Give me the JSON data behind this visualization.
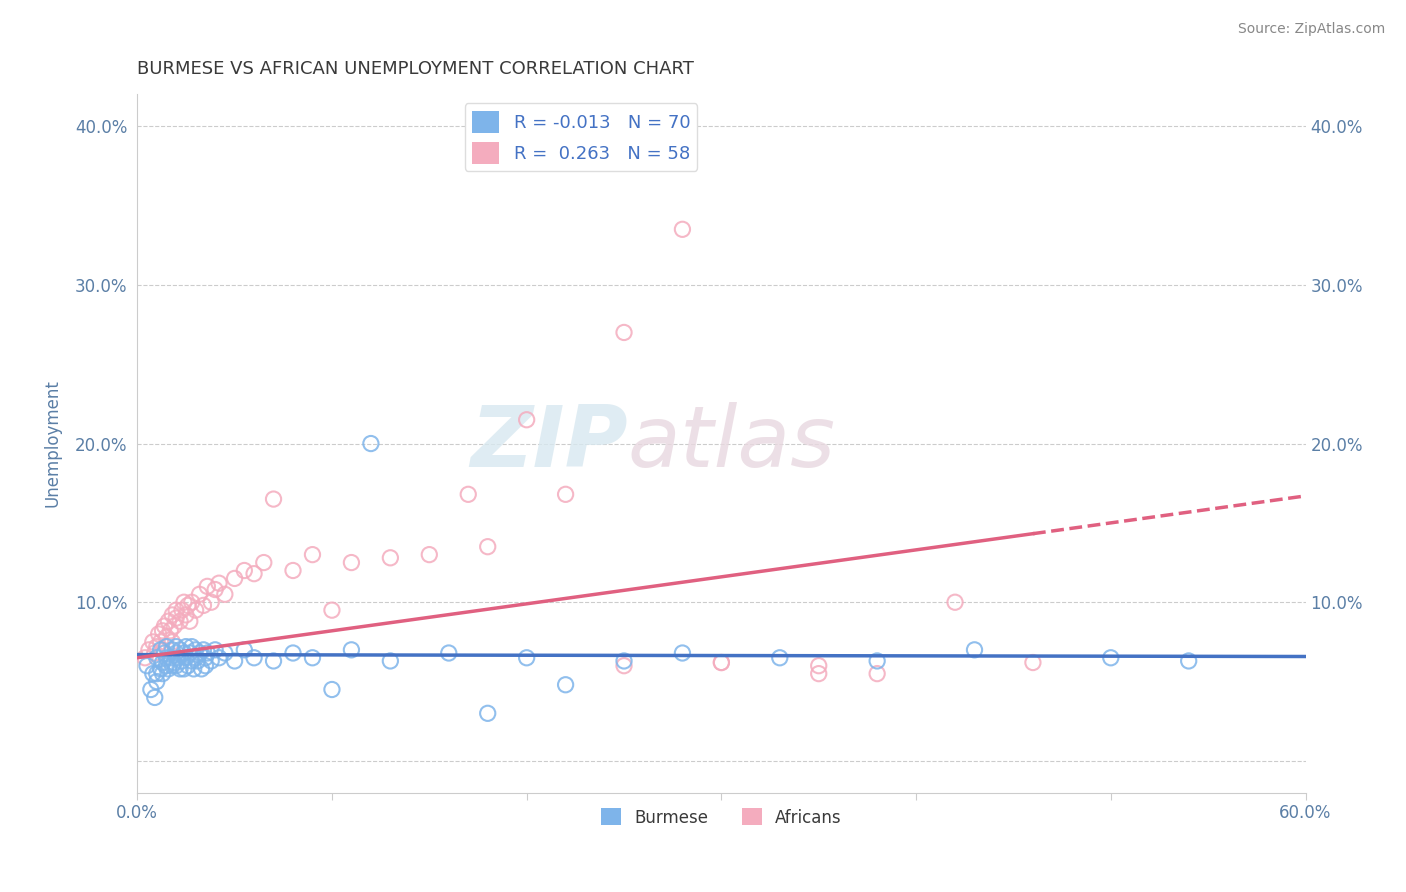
{
  "title": "BURMESE VS AFRICAN UNEMPLOYMENT CORRELATION CHART",
  "source": "Source: ZipAtlas.com",
  "ylabel": "Unemployment",
  "xlim": [
    0.0,
    0.6
  ],
  "ylim": [
    -0.02,
    0.42
  ],
  "yticks": [
    0.0,
    0.1,
    0.2,
    0.3,
    0.4
  ],
  "ytick_labels": [
    "",
    "10.0%",
    "20.0%",
    "30.0%",
    "40.0%"
  ],
  "xticks": [
    0.0,
    0.1,
    0.2,
    0.3,
    0.4,
    0.5,
    0.6
  ],
  "xtick_labels": [
    "0.0%",
    "",
    "",
    "",
    "",
    "",
    "60.0%"
  ],
  "burmese_color": "#7EB4EA",
  "burmese_line_color": "#4472C4",
  "african_color": "#F4ACBE",
  "african_line_color": "#E06080",
  "burmese_R": -0.013,
  "burmese_N": 70,
  "african_R": 0.263,
  "african_N": 58,
  "legend_label_burmese": "Burmese",
  "legend_label_african": "Africans",
  "watermark_zip": "ZIP",
  "watermark_atlas": "atlas",
  "title_color": "#3A3A3A",
  "axis_label_color": "#5B7FA6",
  "tick_color": "#5B7FA6",
  "burmese_scatter_x": [
    0.005,
    0.007,
    0.008,
    0.009,
    0.01,
    0.01,
    0.01,
    0.012,
    0.012,
    0.013,
    0.013,
    0.014,
    0.015,
    0.015,
    0.015,
    0.016,
    0.017,
    0.018,
    0.018,
    0.019,
    0.02,
    0.02,
    0.02,
    0.021,
    0.022,
    0.022,
    0.023,
    0.024,
    0.024,
    0.025,
    0.025,
    0.026,
    0.027,
    0.028,
    0.028,
    0.029,
    0.03,
    0.03,
    0.031,
    0.032,
    0.033,
    0.034,
    0.035,
    0.035,
    0.036,
    0.038,
    0.04,
    0.042,
    0.045,
    0.05,
    0.055,
    0.06,
    0.07,
    0.08,
    0.09,
    0.11,
    0.13,
    0.16,
    0.2,
    0.25,
    0.28,
    0.33,
    0.38,
    0.43,
    0.5,
    0.54,
    0.18,
    0.22,
    0.12,
    0.1
  ],
  "burmese_scatter_y": [
    0.06,
    0.045,
    0.055,
    0.04,
    0.065,
    0.05,
    0.055,
    0.07,
    0.058,
    0.062,
    0.055,
    0.068,
    0.06,
    0.065,
    0.072,
    0.058,
    0.065,
    0.06,
    0.07,
    0.062,
    0.068,
    0.06,
    0.072,
    0.065,
    0.058,
    0.07,
    0.063,
    0.068,
    0.058,
    0.072,
    0.065,
    0.06,
    0.068,
    0.063,
    0.072,
    0.058,
    0.065,
    0.07,
    0.063,
    0.068,
    0.058,
    0.07,
    0.065,
    0.06,
    0.068,
    0.063,
    0.07,
    0.065,
    0.068,
    0.063,
    0.07,
    0.065,
    0.063,
    0.068,
    0.065,
    0.07,
    0.063,
    0.068,
    0.065,
    0.063,
    0.068,
    0.065,
    0.063,
    0.07,
    0.065,
    0.063,
    0.03,
    0.048,
    0.2,
    0.045
  ],
  "african_scatter_x": [
    0.004,
    0.006,
    0.008,
    0.009,
    0.01,
    0.011,
    0.012,
    0.013,
    0.013,
    0.014,
    0.015,
    0.016,
    0.017,
    0.018,
    0.018,
    0.019,
    0.02,
    0.02,
    0.022,
    0.023,
    0.024,
    0.025,
    0.026,
    0.027,
    0.028,
    0.03,
    0.032,
    0.034,
    0.036,
    0.038,
    0.04,
    0.042,
    0.045,
    0.05,
    0.055,
    0.06,
    0.065,
    0.07,
    0.08,
    0.09,
    0.1,
    0.11,
    0.13,
    0.15,
    0.17,
    0.18,
    0.2,
    0.22,
    0.25,
    0.28,
    0.3,
    0.35,
    0.38,
    0.42,
    0.46,
    0.35,
    0.3,
    0.25
  ],
  "african_scatter_y": [
    0.065,
    0.07,
    0.075,
    0.068,
    0.072,
    0.08,
    0.075,
    0.082,
    0.07,
    0.085,
    0.078,
    0.088,
    0.082,
    0.075,
    0.092,
    0.085,
    0.09,
    0.095,
    0.088,
    0.095,
    0.1,
    0.092,
    0.098,
    0.088,
    0.1,
    0.095,
    0.105,
    0.098,
    0.11,
    0.1,
    0.108,
    0.112,
    0.105,
    0.115,
    0.12,
    0.118,
    0.125,
    0.165,
    0.12,
    0.13,
    0.095,
    0.125,
    0.128,
    0.13,
    0.168,
    0.135,
    0.215,
    0.168,
    0.06,
    0.335,
    0.062,
    0.06,
    0.055,
    0.1,
    0.062,
    0.055,
    0.062,
    0.27
  ]
}
